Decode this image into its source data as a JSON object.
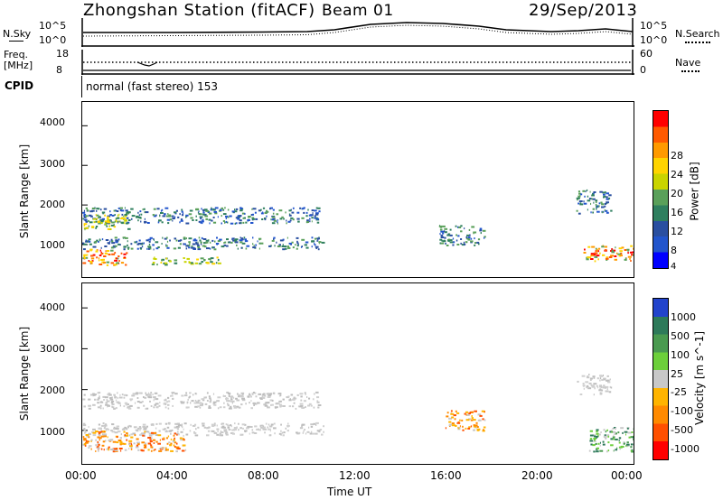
{
  "header": {
    "station": "Zhongshan Station (fitACF)",
    "beam": "Beam 01",
    "date": "29/Sep/2013"
  },
  "noise_panel": {
    "left_label": "N.Sky",
    "right_label": "N.Search",
    "y_ticks": [
      "10^5",
      "10^0"
    ]
  },
  "freq_panel": {
    "left_label_1": "Freq.",
    "left_label_2": "[MHz]",
    "right_label": "Nave",
    "left_ticks": [
      "18",
      "8"
    ],
    "right_ticks": [
      "60",
      "0"
    ]
  },
  "cpid": {
    "label": "CPID",
    "text": "normal (fast stereo) 153"
  },
  "power_colorbar": {
    "label": "Power [dB]",
    "ticks": [
      "28",
      "24",
      "20",
      "16",
      "12",
      "8",
      "4"
    ],
    "colors": [
      "#ff0000",
      "#ff5a00",
      "#ff9a00",
      "#ffd400",
      "#c9d400",
      "#5aa05a",
      "#2f7f5f",
      "#2a4fa0",
      "#2255cc",
      "#0000ff"
    ]
  },
  "velocity_colorbar": {
    "label": "Velocity [m s^-1]",
    "ticks": [
      "1000",
      "500",
      "100",
      "25",
      "-25",
      "-100",
      "-500",
      "-1000"
    ],
    "colors": [
      "#2244cc",
      "#2e7a5a",
      "#4a9a50",
      "#6ccf3a",
      "#c8c8c8",
      "#ffb400",
      "#ff8a00",
      "#ff5000",
      "#ff0000"
    ]
  },
  "chart_data": [
    {
      "type": "heatmap",
      "panel": "power",
      "ylabel": "Slant Range [km]",
      "yticks": [
        1000,
        2000,
        3000,
        4000
      ],
      "ylim": [
        180,
        4600
      ],
      "xlim": [
        0,
        24
      ],
      "xticks": [
        "00:00",
        "04:00",
        "08:00",
        "12:00",
        "16:00",
        "20:00",
        "00:00"
      ],
      "regions": [
        {
          "t0": 0.0,
          "t1": 10.5,
          "r0": 900,
          "r1": 1200,
          "level": "low"
        },
        {
          "t0": 0.0,
          "t1": 10.3,
          "r0": 1550,
          "r1": 1950,
          "level": "low"
        },
        {
          "t0": 0.0,
          "t1": 2.0,
          "r0": 500,
          "r1": 900,
          "level": "high"
        },
        {
          "t0": 0.0,
          "t1": 2.0,
          "r0": 1400,
          "r1": 1800,
          "level": "mid"
        },
        {
          "t0": 3.0,
          "t1": 6.0,
          "r0": 500,
          "r1": 700,
          "level": "mid"
        },
        {
          "t0": 15.5,
          "t1": 17.5,
          "r0": 1000,
          "r1": 1500,
          "level": "low"
        },
        {
          "t0": 21.8,
          "t1": 24.0,
          "r0": 600,
          "r1": 1000,
          "level": "high"
        },
        {
          "t0": 21.5,
          "t1": 23.0,
          "r0": 1800,
          "r1": 2400,
          "level": "low"
        }
      ]
    },
    {
      "type": "heatmap",
      "panel": "velocity",
      "ylabel": "Slant Range [km]",
      "xlabel": "Time UT",
      "yticks": [
        1000,
        2000,
        3000,
        4000
      ],
      "ylim": [
        180,
        4600
      ],
      "xlim": [
        0,
        24
      ],
      "xticks": [
        "00:00",
        "04:00",
        "08:00",
        "12:00",
        "16:00",
        "20:00",
        "00:00"
      ],
      "regions": [
        {
          "t0": 0.0,
          "t1": 10.5,
          "r0": 900,
          "r1": 1200,
          "level": "grey"
        },
        {
          "t0": 0.0,
          "t1": 10.3,
          "r0": 1550,
          "r1": 1950,
          "level": "grey"
        },
        {
          "t0": 0.0,
          "t1": 4.5,
          "r0": 500,
          "r1": 1000,
          "level": "neg"
        },
        {
          "t0": 15.8,
          "t1": 17.5,
          "r0": 1000,
          "r1": 1500,
          "level": "neg"
        },
        {
          "t0": 22.0,
          "t1": 24.0,
          "r0": 500,
          "r1": 1100,
          "level": "pos"
        },
        {
          "t0": 21.5,
          "t1": 23.0,
          "r0": 1900,
          "r1": 2400,
          "level": "grey"
        }
      ]
    }
  ]
}
